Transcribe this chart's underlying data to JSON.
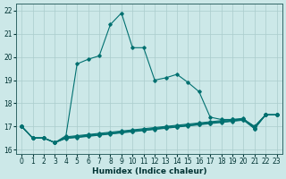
{
  "xlabel": "Humidex (Indice chaleur)",
  "background_color": "#cce8e8",
  "grid_color": "#aacccc",
  "line_color": "#007070",
  "xlim": [
    -0.5,
    23.5
  ],
  "ylim": [
    15.8,
    22.3
  ],
  "xticks": [
    0,
    1,
    2,
    3,
    4,
    5,
    6,
    7,
    8,
    9,
    10,
    11,
    12,
    13,
    14,
    15,
    16,
    17,
    18,
    19,
    20,
    21,
    22,
    23
  ],
  "yticks": [
    16,
    17,
    18,
    19,
    20,
    21,
    22
  ],
  "line1": [
    17.0,
    16.5,
    16.5,
    16.3,
    16.6,
    19.7,
    19.9,
    20.05,
    21.4,
    21.9,
    20.4,
    20.4,
    19.0,
    19.1,
    19.25,
    18.9,
    18.5,
    17.4,
    17.3,
    17.3,
    17.3,
    17.0,
    17.5,
    17.5
  ],
  "line2": [
    17.0,
    16.5,
    16.5,
    16.3,
    16.55,
    16.6,
    16.65,
    16.7,
    16.75,
    16.8,
    16.85,
    16.9,
    16.95,
    17.0,
    17.05,
    17.1,
    17.15,
    17.2,
    17.25,
    17.3,
    17.35,
    16.9,
    17.5,
    17.5
  ],
  "line3": [
    17.0,
    16.5,
    16.5,
    16.3,
    16.52,
    16.57,
    16.62,
    16.67,
    16.72,
    16.77,
    16.82,
    16.87,
    16.92,
    16.97,
    17.02,
    17.07,
    17.12,
    17.17,
    17.22,
    17.27,
    17.32,
    17.0,
    17.5,
    17.5
  ],
  "line4": [
    17.0,
    16.5,
    16.5,
    16.3,
    16.5,
    16.54,
    16.59,
    16.64,
    16.69,
    16.74,
    16.79,
    16.84,
    16.89,
    16.94,
    16.99,
    17.04,
    17.09,
    17.14,
    17.19,
    17.24,
    17.29,
    16.95,
    17.5,
    17.5
  ],
  "line5": [
    17.0,
    16.5,
    16.5,
    16.3,
    16.48,
    16.52,
    16.57,
    16.62,
    16.67,
    16.72,
    16.77,
    16.82,
    16.87,
    16.92,
    16.97,
    17.02,
    17.07,
    17.12,
    17.17,
    17.22,
    17.27,
    16.9,
    17.5,
    17.5
  ]
}
